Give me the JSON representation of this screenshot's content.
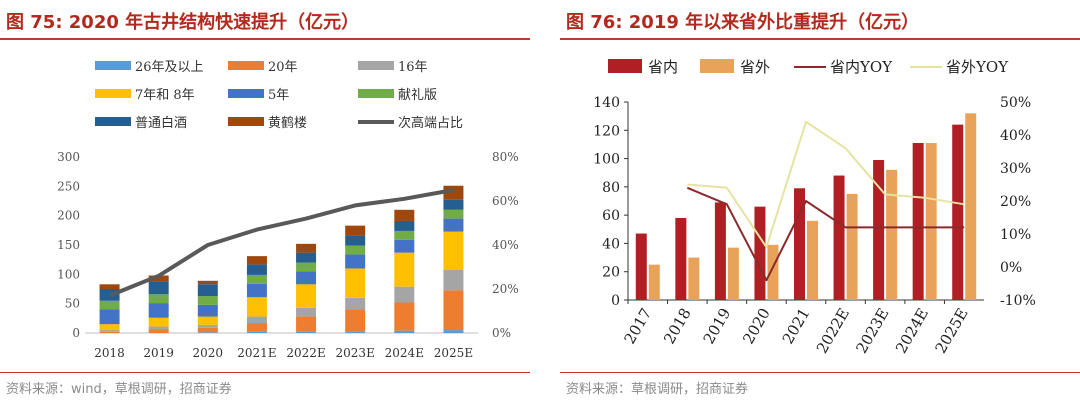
{
  "left": {
    "title": "图 75:  2020 年古井结构快速提升（亿元）",
    "source": "资料来源：wind，草根调研，招商证券",
    "chart_data": {
      "type": "bar",
      "stacked": true,
      "categories": [
        "2018",
        "2019",
        "2020",
        "2021E",
        "2022E",
        "2023E",
        "2024E",
        "2025E"
      ],
      "series": [
        {
          "name": "26年及以上",
          "color": "#5b9bd5",
          "values": [
            0,
            0,
            1,
            2,
            3,
            3,
            4,
            5
          ]
        },
        {
          "name": "20年",
          "color": "#ed7d31",
          "values": [
            2,
            6,
            8,
            15,
            25,
            37,
            48,
            68
          ]
        },
        {
          "name": "16年",
          "color": "#a5a5a5",
          "values": [
            3,
            5,
            5,
            11,
            15,
            20,
            27,
            35
          ]
        },
        {
          "name": " 7年和  8年",
          "color": "#ffc000",
          "values": [
            10,
            15,
            14,
            33,
            40,
            50,
            58,
            65
          ]
        },
        {
          "name": " 5年",
          "color": "#4472c4",
          "values": [
            25,
            25,
            20,
            23,
            22,
            24,
            22,
            22
          ]
        },
        {
          "name": "献礼版",
          "color": "#70ad47",
          "values": [
            15,
            15,
            15,
            15,
            15,
            15,
            15,
            15
          ]
        },
        {
          "name": "普通白酒",
          "color": "#255e91",
          "values": [
            20,
            22,
            20,
            18,
            17,
            17,
            17,
            17
          ]
        },
        {
          "name": "黄鹤楼",
          "color": "#9e480e",
          "values": [
            8,
            10,
            6,
            14,
            15,
            17,
            19,
            24
          ]
        }
      ],
      "line": {
        "name": "次高端占比",
        "color": "#595959",
        "values": [
          0.17,
          0.26,
          0.4,
          0.47,
          0.52,
          0.58,
          0.61,
          0.65
        ]
      },
      "ylim": [
        0,
        300
      ],
      "yticks": [
        "0",
        "50",
        "100",
        "150",
        "200",
        "250",
        "300"
      ],
      "y2lim": [
        0,
        0.8
      ],
      "y2ticks": [
        "0%",
        "20%",
        "40%",
        "60%",
        "80%"
      ]
    }
  },
  "right": {
    "title": "图 76:  2019 年以来省外比重提升（亿元）",
    "source": "资料来源：草根调研，招商证券",
    "chart_data": {
      "type": "bar",
      "categories": [
        "2017",
        "2018",
        "2019",
        "2020",
        "2021",
        "2022E",
        "2023E",
        "2024E",
        "2025E"
      ],
      "series": [
        {
          "name": "省内",
          "color": "#b01f24",
          "values": [
            47,
            58,
            69,
            66,
            79,
            88,
            99,
            111,
            124
          ]
        },
        {
          "name": "省外",
          "color": "#e8a25a",
          "values": [
            25,
            30,
            37,
            39,
            56,
            75,
            92,
            111,
            132
          ]
        }
      ],
      "lines": [
        {
          "name": "省内YOY",
          "color": "#8b2a2a",
          "values": [
            null,
            0.24,
            0.19,
            -0.04,
            0.2,
            0.12,
            0.12,
            0.12,
            0.12
          ]
        },
        {
          "name": "省外YOY",
          "color": "#e6e3a2",
          "values": [
            null,
            0.25,
            0.24,
            0.06,
            0.44,
            0.36,
            0.22,
            0.21,
            0.19
          ]
        }
      ],
      "ylim": [
        0,
        140
      ],
      "yticks": [
        "0",
        "20",
        "40",
        "60",
        "80",
        "100",
        "120",
        "140"
      ],
      "y2lim": [
        -0.1,
        0.5
      ],
      "y2ticks": [
        "-10%",
        "0%",
        "10%",
        "20%",
        "30%",
        "40%",
        "50%"
      ]
    }
  }
}
